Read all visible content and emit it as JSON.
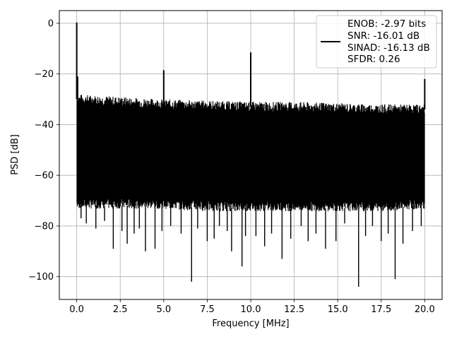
{
  "chart_data": {
    "type": "line",
    "xlabel": "Frequency [MHz]",
    "ylabel": "PSD [dB]",
    "xlim": [
      -1.0,
      21.0
    ],
    "ylim": [
      -109,
      5
    ],
    "xticks": [
      0.0,
      2.5,
      5.0,
      7.5,
      10.0,
      12.5,
      15.0,
      17.5,
      20.0
    ],
    "xtick_labels": [
      "0.0",
      "2.5",
      "5.0",
      "7.5",
      "10.0",
      "12.5",
      "15.0",
      "17.5",
      "20.0"
    ],
    "yticks": [
      0,
      -20,
      -40,
      -60,
      -80,
      -100
    ],
    "ytick_labels": [
      "0",
      "−20",
      "−40",
      "−60",
      "−80",
      "−100"
    ],
    "grid": true,
    "legend_position": "upper-right",
    "series": [
      {
        "color": "#000000",
        "legend_lines": [
          "ENOB: -2.97 bits",
          "SNR: -16.01 dB",
          "SINAD: -16.13 dB",
          "SFDR: 0.26"
        ],
        "noise_band": {
          "x": [
            0.0,
            2.5,
            5.0,
            7.5,
            10.0,
            12.5,
            15.0,
            17.5,
            20.0
          ],
          "upper": [
            -30,
            -31,
            -32,
            -32.5,
            -33,
            -33,
            -33.5,
            -34,
            -34
          ],
          "lower": [
            -72,
            -72,
            -72,
            -73,
            -73,
            -73,
            -73,
            -73,
            -72
          ]
        },
        "spurs": [
          {
            "x": 0.0,
            "y": 0.3
          },
          {
            "x": 0.05,
            "y": -21
          },
          {
            "x": 5.0,
            "y": -18.5
          },
          {
            "x": 10.0,
            "y": -11.5
          },
          {
            "x": 20.0,
            "y": -22
          }
        ],
        "dips": [
          {
            "x": 0.25,
            "y": -77
          },
          {
            "x": 0.55,
            "y": -79
          },
          {
            "x": 1.1,
            "y": -81
          },
          {
            "x": 1.6,
            "y": -78
          },
          {
            "x": 2.1,
            "y": -89
          },
          {
            "x": 2.6,
            "y": -82
          },
          {
            "x": 2.9,
            "y": -87
          },
          {
            "x": 3.3,
            "y": -83
          },
          {
            "x": 3.6,
            "y": -81
          },
          {
            "x": 3.95,
            "y": -90
          },
          {
            "x": 4.5,
            "y": -89
          },
          {
            "x": 4.9,
            "y": -82
          },
          {
            "x": 5.4,
            "y": -80
          },
          {
            "x": 6.0,
            "y": -83
          },
          {
            "x": 6.6,
            "y": -102
          },
          {
            "x": 6.95,
            "y": -81
          },
          {
            "x": 7.5,
            "y": -86
          },
          {
            "x": 7.9,
            "y": -85
          },
          {
            "x": 8.2,
            "y": -80
          },
          {
            "x": 8.65,
            "y": -82
          },
          {
            "x": 8.9,
            "y": -90
          },
          {
            "x": 9.5,
            "y": -96
          },
          {
            "x": 9.7,
            "y": -84
          },
          {
            "x": 10.3,
            "y": -84
          },
          {
            "x": 10.8,
            "y": -88
          },
          {
            "x": 11.2,
            "y": -83
          },
          {
            "x": 11.8,
            "y": -93
          },
          {
            "x": 12.3,
            "y": -85
          },
          {
            "x": 12.9,
            "y": -80
          },
          {
            "x": 13.3,
            "y": -86
          },
          {
            "x": 13.75,
            "y": -83
          },
          {
            "x": 14.3,
            "y": -89
          },
          {
            "x": 14.9,
            "y": -86
          },
          {
            "x": 15.4,
            "y": -79
          },
          {
            "x": 16.2,
            "y": -104
          },
          {
            "x": 16.6,
            "y": -84
          },
          {
            "x": 17.0,
            "y": -80
          },
          {
            "x": 17.5,
            "y": -86
          },
          {
            "x": 17.9,
            "y": -83
          },
          {
            "x": 18.3,
            "y": -101
          },
          {
            "x": 18.75,
            "y": -87
          },
          {
            "x": 19.3,
            "y": -82
          },
          {
            "x": 19.8,
            "y": -80
          }
        ]
      }
    ]
  }
}
